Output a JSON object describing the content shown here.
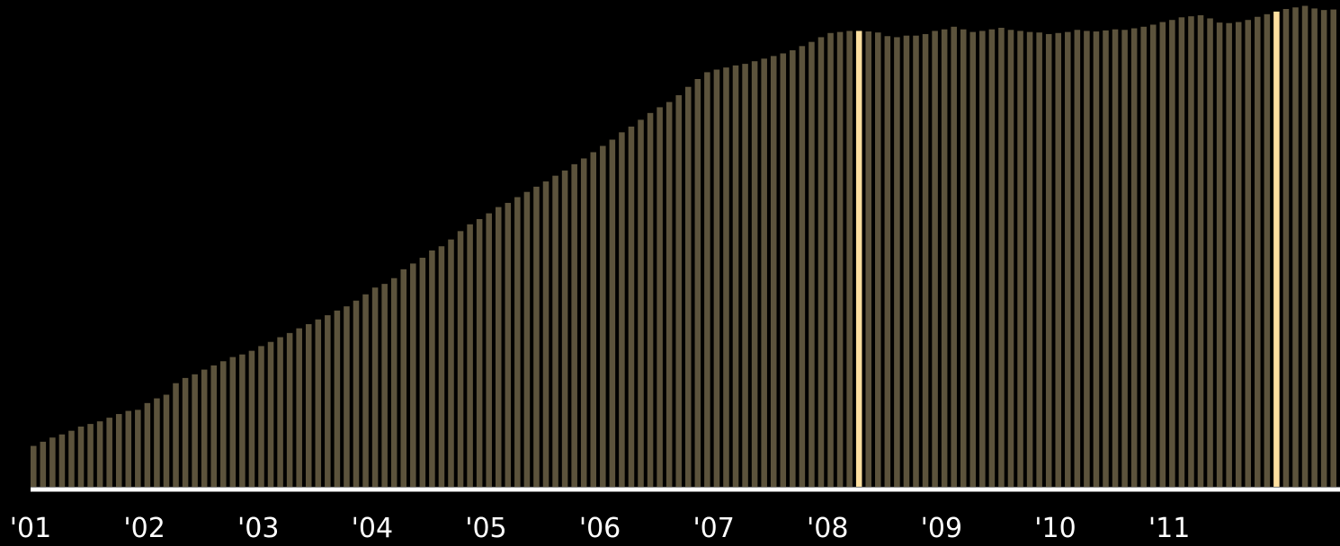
{
  "chart_data": {
    "type": "bar",
    "title": "",
    "xlabel": "",
    "ylabel": "",
    "ylim": [
      0,
      100
    ],
    "grid": false,
    "legend": "none",
    "x_tick_labels": [
      "'01",
      "'02",
      "'03",
      "'04",
      "'05",
      "'06",
      "'07",
      "'08",
      "'09",
      "'10",
      "'11"
    ],
    "bars_per_year": 12,
    "highlighted_indices": [
      87,
      131
    ],
    "colors": {
      "background": "#000000",
      "bar": "#5c533c",
      "highlight": "#ffe0a0",
      "axis": "#ffffff",
      "text": "#ffffff"
    },
    "values": [
      16.4,
      17.2,
      18.0,
      18.6,
      19.3,
      20.1,
      20.6,
      21.1,
      21.8,
      22.5,
      23.1,
      23.3,
      24.6,
      25.5,
      26.2,
      28.4,
      29.4,
      30.1,
      31.0,
      31.8,
      32.6,
      33.4,
      33.9,
      34.6,
      35.5,
      36.3,
      37.2,
      38.0,
      38.9,
      39.7,
      40.6,
      41.4,
      42.3,
      43.1,
      44.2,
      45.4,
      46.7,
      47.4,
      48.5,
      50.2,
      51.3,
      52.4,
      53.8,
      54.6,
      55.9,
      57.5,
      58.8,
      59.8,
      60.9,
      62.1,
      62.9,
      64.0,
      65.0,
      66.0,
      67.0,
      68.1,
      69.1,
      70.3,
      71.4,
      72.6,
      73.8,
      75.0,
      76.4,
      77.5,
      78.8,
      80.1,
      81.2,
      82.2,
      83.5,
      85.1,
      86.6,
      87.9,
      88.4,
      88.8,
      89.2,
      89.5,
      90.0,
      90.5,
      91.0,
      91.5,
      92.1,
      92.9,
      93.7,
      94.6,
      95.4,
      95.6,
      95.8,
      95.8,
      95.7,
      95.5,
      94.8,
      94.6,
      94.9,
      94.9,
      95.2,
      95.8,
      96.1,
      96.6,
      96.1,
      95.6,
      95.8,
      96.1,
      96.4,
      96.0,
      95.8,
      95.6,
      95.5,
      95.2,
      95.4,
      95.6,
      96.0,
      95.8,
      95.7,
      95.9,
      96.1,
      96.0,
      96.3,
      96.6,
      97.0,
      97.5,
      97.9,
      98.4,
      98.6,
      98.8,
      98.2,
      97.4,
      97.3,
      97.5,
      97.9,
      98.5,
      99.0,
      99.5,
      100.0,
      100.3,
      100.6,
      100.1,
      99.8,
      99.9
    ]
  }
}
